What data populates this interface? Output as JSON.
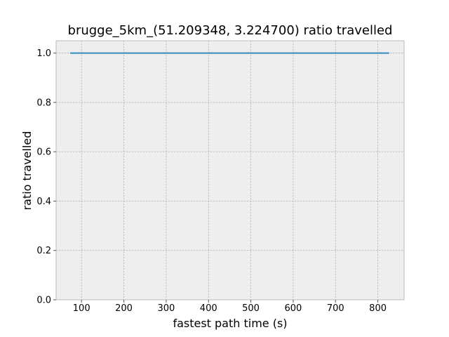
{
  "chart_data": {
    "type": "line",
    "title": "brugge_5km_(51.209348, 3.224700) ratio travelled",
    "xlabel": "fastest path time (s)",
    "ylabel": "ratio travelled",
    "xlim": [
      40,
      862
    ],
    "ylim": [
      0,
      1.05
    ],
    "xticks": [
      100,
      200,
      300,
      400,
      500,
      600,
      700,
      800
    ],
    "yticks": [
      0.0,
      0.2,
      0.4,
      0.6,
      0.8,
      1.0
    ],
    "ytick_labels": [
      "0.0",
      "0.2",
      "0.4",
      "0.6",
      "0.8",
      "1.0"
    ],
    "grid": true,
    "series": [
      {
        "color": "#348abd",
        "x": [
          75,
          150,
          250,
          350,
          450,
          550,
          650,
          750,
          825
        ],
        "y": [
          1.0,
          1.0,
          1.0,
          1.0,
          1.0,
          1.0,
          1.0,
          1.0,
          1.0
        ]
      }
    ],
    "colors": {
      "plot_bg": "#eeeeee",
      "grid": "#b2b2b2",
      "frame": "#bcbcbc"
    }
  }
}
